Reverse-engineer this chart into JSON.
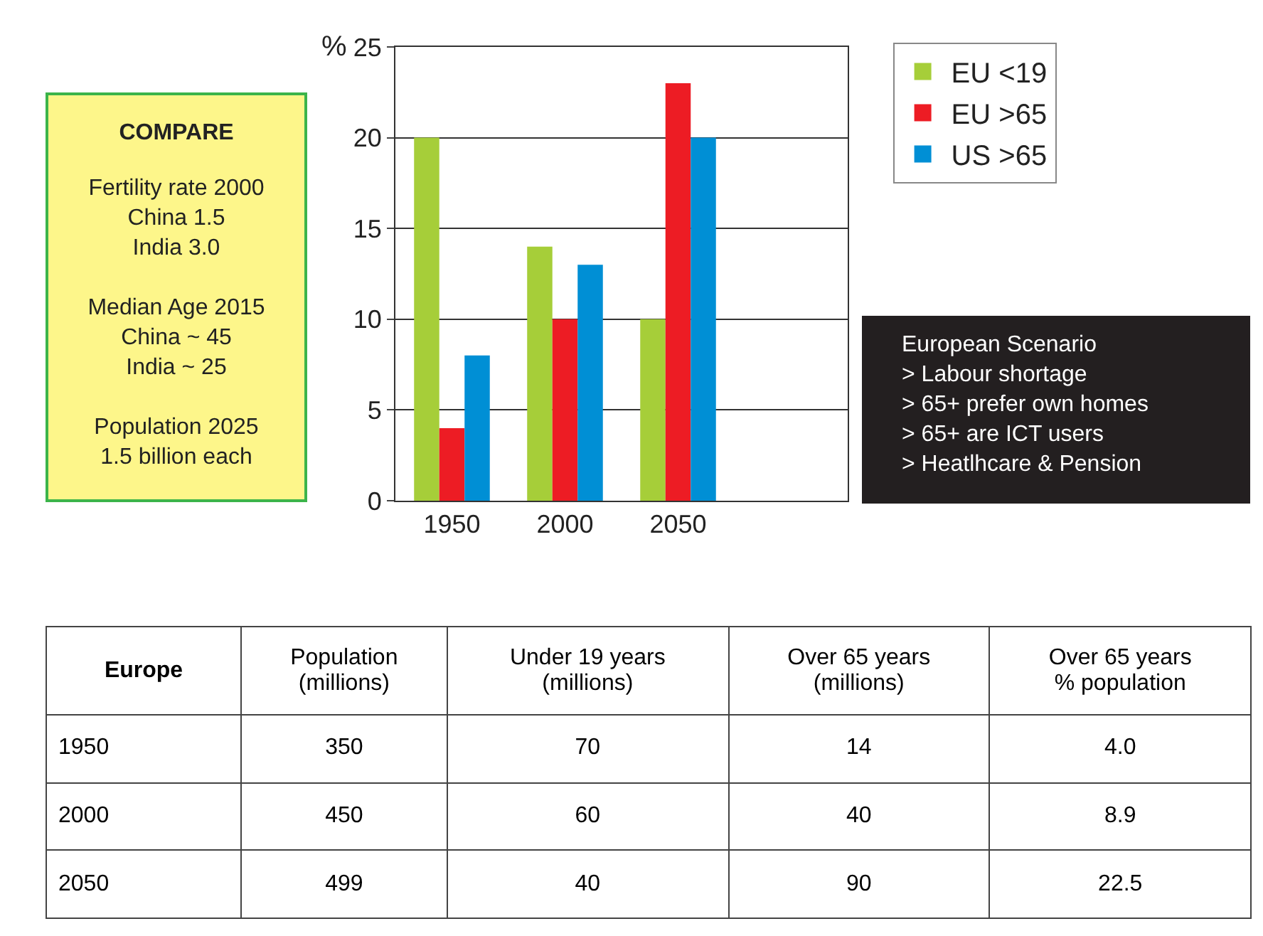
{
  "chart_data": [
    {
      "type": "bar",
      "ylabel": "%",
      "categories": [
        "1950",
        "2000",
        "2050",
        null
      ],
      "series": [
        {
          "name": "EU <19",
          "color": "#a6ce39",
          "values": [
            20,
            14,
            10,
            null
          ]
        },
        {
          "name": "EU >65",
          "color": "#ed1c24",
          "values": [
            4,
            10,
            23,
            null
          ]
        },
        {
          "name": "US >65",
          "color": "#008fd5",
          "values": [
            8,
            13,
            20,
            null
          ]
        }
      ],
      "ylim": [
        0,
        25
      ],
      "yticks": [
        0,
        5,
        10,
        15,
        20,
        25
      ],
      "grid": "y",
      "legend": "top right"
    },
    {
      "type": "other",
      "title": "COMPARE",
      "annotations": [
        "Fertility rate 2000\nChina 1.5\nIndia 3.0",
        "Median Age 2015\nChina ~ 45\nIndia ~ 25",
        "Population 2025\n1.5 billion each"
      ]
    },
    {
      "type": "other",
      "annotations": [
        "European Scenario",
        "> Labour shortage",
        "> 65+ prefer own homes",
        "> 65+ are ICT users",
        "> Heatlhcare & Pension"
      ]
    },
    {
      "type": "other",
      "title": "Europe",
      "categories": [
        "Population\n(millions)",
        "Under 19 years\n(millions)",
        "Over 65 years\n(millions)",
        "Over 65 years\n% population"
      ],
      "y_categories": [
        "1950",
        "2000",
        "2050"
      ],
      "cell_labels": [
        [
          "350",
          "70",
          "14",
          "4.0"
        ],
        [
          "450",
          "60",
          "40",
          "8.9"
        ],
        [
          "499",
          "40",
          "90",
          "22.5"
        ]
      ]
    }
  ]
}
